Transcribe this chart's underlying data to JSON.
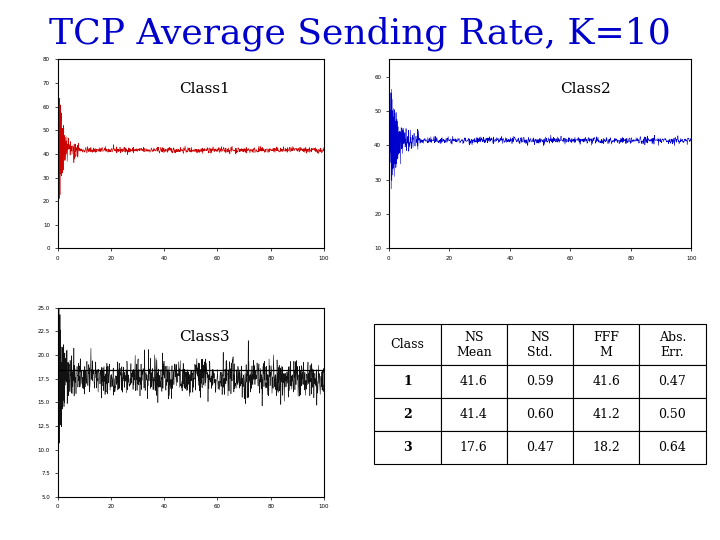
{
  "title": "TCP Average Sending Rate, K=10",
  "title_color": "#0000cc",
  "title_fontsize": 26,
  "background_color": "#ffffff",
  "class1_label": "Class1",
  "class2_label": "Class2",
  "class3_label": "Class3",
  "class1_color": "#cc0000",
  "class2_color": "#0000cc",
  "class3_color": "#111111",
  "class1_mean": 41.6,
  "class2_mean": 41.4,
  "class3_mean": 17.6,
  "class1_ylim": [
    0,
    80
  ],
  "class2_ylim": [
    10,
    65
  ],
  "class3_ylim": [
    5,
    25
  ],
  "xlim": [
    0,
    100
  ],
  "table_headers": [
    "Class",
    "NS\nMean",
    "NS\nStd.",
    "FFF\nM",
    "Abs.\nErr."
  ],
  "table_data": [
    [
      "1",
      "41.6",
      "0.59",
      "41.6",
      "0.47"
    ],
    [
      "2",
      "41.4",
      "0.60",
      "41.2",
      "0.50"
    ],
    [
      "3",
      "17.6",
      "0.47",
      "18.2",
      "0.64"
    ]
  ],
  "seed": 42
}
